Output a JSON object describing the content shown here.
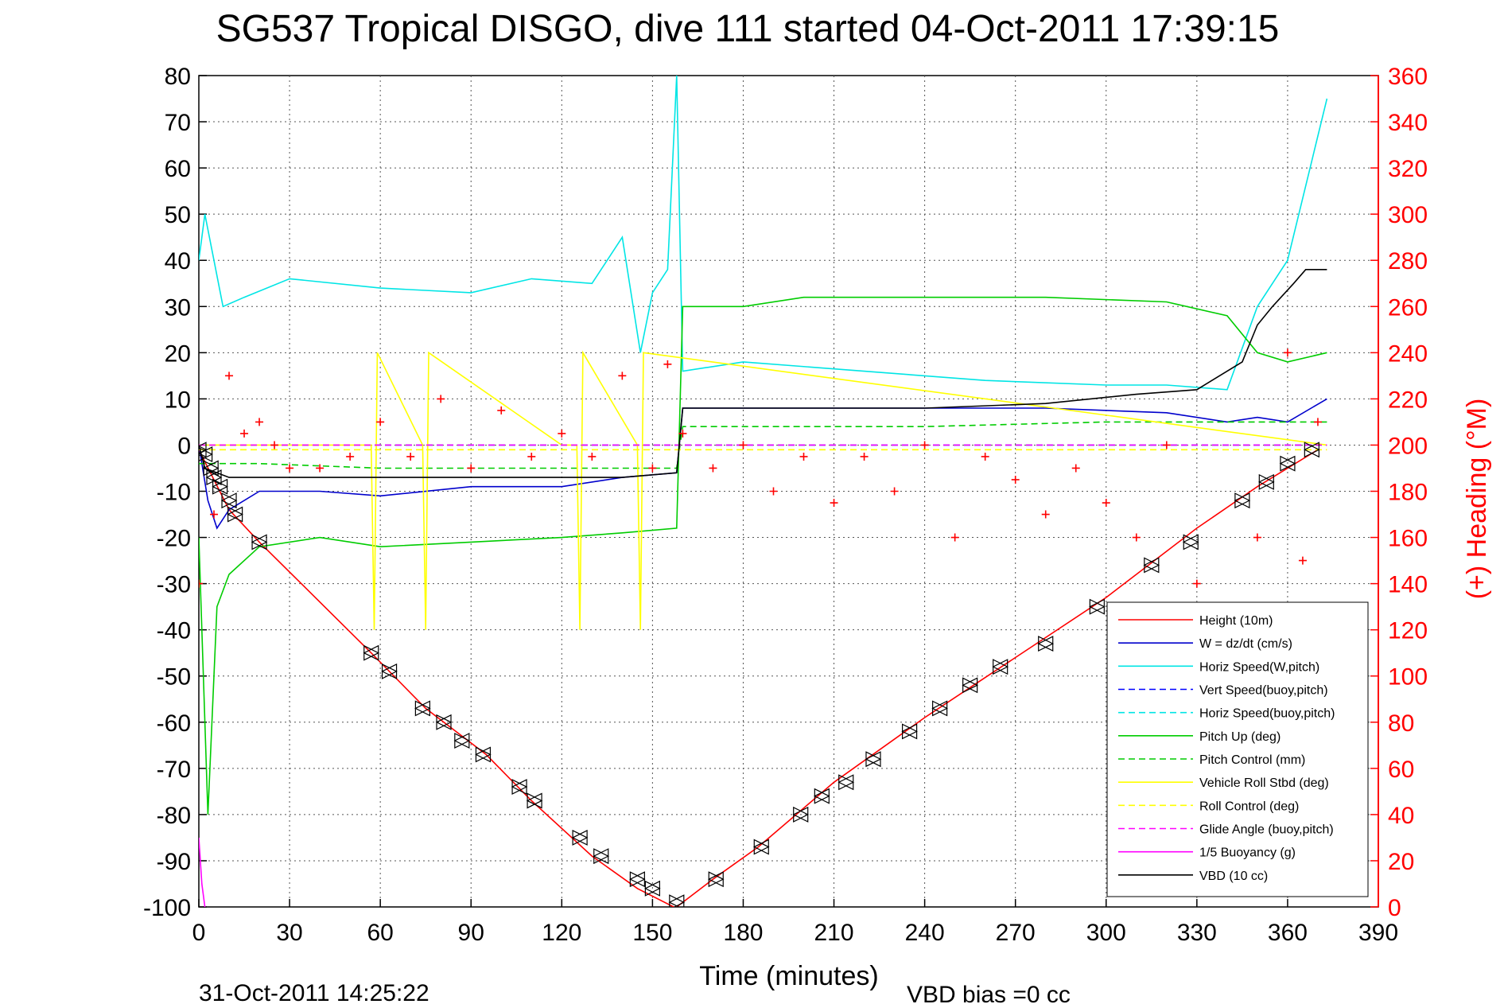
{
  "chart_data": {
    "type": "line",
    "title": "SG537 Tropical DISGO, dive 111 started 04-Oct-2011 17:39:15",
    "xlabel": "Time (minutes)",
    "ylabel_right": "(+) Heading (°M)",
    "footer_date": "31-Oct-2011 14:25:22",
    "footer_bias": "VBD bias =0 cc",
    "xlim": [
      0,
      390
    ],
    "ylim": [
      -100,
      80
    ],
    "ylim_right": [
      0,
      360
    ],
    "grid": true,
    "legend_position": "bottom-right",
    "x_ticks": [
      "0",
      "30",
      "60",
      "90",
      "120",
      "150",
      "180",
      "210",
      "240",
      "270",
      "300",
      "330",
      "360",
      "390"
    ],
    "y_ticks": [
      "80",
      "70",
      "60",
      "50",
      "40",
      "30",
      "20",
      "10",
      "0",
      "-10",
      "-20",
      "-30",
      "-40",
      "-50",
      "-60",
      "-70",
      "-80",
      "-90",
      "-100"
    ],
    "y_ticks_right": [
      "360",
      "340",
      "320",
      "300",
      "280",
      "260",
      "240",
      "220",
      "200",
      "180",
      "160",
      "140",
      "120",
      "100",
      "80",
      "60",
      "40",
      "20",
      "0"
    ],
    "series": [
      {
        "name": "Height (10m)",
        "color": "#ff0000",
        "style": "solid",
        "x": [
          0,
          10,
          20,
          57,
          75,
          95,
          110,
          130,
          145,
          157,
          158,
          170,
          185,
          210,
          240,
          270,
          300,
          330,
          350,
          370
        ],
        "y": [
          -1,
          -14,
          -21,
          -45,
          -57,
          -67,
          -77,
          -89,
          -96,
          -100,
          -100,
          -94,
          -87,
          -73,
          -59,
          -46,
          -33,
          -18,
          -9,
          -1
        ]
      },
      {
        "name": "W = dz/dt (cm/s)",
        "color": "#0000cc",
        "style": "solid",
        "x": [
          0,
          3,
          6,
          10,
          20,
          40,
          60,
          90,
          120,
          140,
          158,
          160,
          200,
          240,
          280,
          320,
          340,
          350,
          360,
          373
        ],
        "y": [
          0,
          -12,
          -18,
          -14,
          -10,
          -10,
          -11,
          -9,
          -9,
          -7,
          -6,
          8,
          8,
          8,
          8,
          7,
          5,
          6,
          5,
          10
        ]
      },
      {
        "name": "Horiz Speed(W,pitch)",
        "color": "#00e5e5",
        "style": "solid",
        "x": [
          0,
          2,
          5,
          8,
          15,
          30,
          60,
          90,
          110,
          130,
          140,
          146,
          150,
          155,
          158,
          160,
          180,
          220,
          260,
          300,
          320,
          340,
          350,
          360,
          373
        ],
        "y": [
          40,
          50,
          40,
          30,
          32,
          36,
          34,
          33,
          36,
          35,
          45,
          20,
          33,
          38,
          80,
          16,
          18,
          16,
          14,
          13,
          13,
          12,
          30,
          40,
          75
        ]
      },
      {
        "name": "Vert Speed(buoy,pitch)",
        "color": "#0000ff",
        "style": "dash",
        "x": [
          0,
          373
        ],
        "y": [
          0,
          0
        ]
      },
      {
        "name": "Horiz Speed(buoy,pitch)",
        "color": "#00e5e5",
        "style": "dash",
        "x": [
          0,
          373
        ],
        "y": [
          0,
          0
        ]
      },
      {
        "name": "Pitch Up (deg)",
        "color": "#00cc00",
        "style": "solid",
        "x": [
          0,
          3,
          6,
          10,
          20,
          40,
          60,
          90,
          120,
          140,
          158,
          160,
          180,
          200,
          240,
          280,
          320,
          340,
          350,
          360,
          373
        ],
        "y": [
          -20,
          -80,
          -35,
          -28,
          -22,
          -20,
          -22,
          -21,
          -20,
          -19,
          -18,
          30,
          30,
          32,
          32,
          32,
          31,
          28,
          20,
          18,
          20
        ]
      },
      {
        "name": "Pitch Control (mm)",
        "color": "#00cc00",
        "style": "dash",
        "x": [
          0,
          20,
          60,
          120,
          158,
          160,
          240,
          300,
          340,
          373
        ],
        "y": [
          -4,
          -4,
          -5,
          -5,
          -5,
          4,
          4,
          5,
          5,
          5
        ]
      },
      {
        "name": "Vehicle Roll Stbd (deg)",
        "color": "#ffff00",
        "style": "solid",
        "x": [
          0,
          40,
          57,
          58,
          59,
          74,
          75,
          76,
          120,
          125,
          126,
          127,
          145,
          146,
          147,
          373
        ],
        "y": [
          0,
          0,
          0,
          -40,
          20,
          0,
          -40,
          20,
          0,
          0,
          -40,
          20,
          0,
          -40,
          20,
          0
        ]
      },
      {
        "name": "Roll Control (deg)",
        "color": "#ffff00",
        "style": "dash",
        "x": [
          0,
          373
        ],
        "y": [
          -1,
          -1
        ]
      },
      {
        "name": "Glide Angle (buoy,pitch)",
        "color": "#ff00ff",
        "style": "dash",
        "x": [
          0,
          373
        ],
        "y": [
          0,
          0
        ]
      },
      {
        "name": "1/5 Buoyancy (g)",
        "color": "#ff00ff",
        "style": "solid",
        "x": [
          0,
          1,
          2
        ],
        "y": [
          -85,
          -95,
          -100
        ]
      },
      {
        "name": "VBD (10 cc)",
        "color": "#000000",
        "style": "solid",
        "x": [
          0,
          2,
          10,
          30,
          60,
          100,
          140,
          158,
          160,
          200,
          240,
          280,
          310,
          330,
          345,
          350,
          355,
          362,
          366,
          373
        ],
        "y": [
          0,
          -5,
          -7,
          -7,
          -7,
          -7,
          -7,
          -6,
          8,
          8,
          8,
          9,
          11,
          12,
          18,
          26,
          30,
          35,
          38,
          38
        ]
      }
    ],
    "heading": {
      "name": "(+) Heading (°M)",
      "color": "#ff0000",
      "x": [
        0,
        5,
        10,
        15,
        20,
        25,
        30,
        40,
        50,
        60,
        70,
        80,
        90,
        100,
        110,
        120,
        130,
        140,
        150,
        155,
        160,
        170,
        180,
        190,
        200,
        210,
        220,
        230,
        240,
        250,
        260,
        270,
        280,
        290,
        300,
        310,
        320,
        330,
        340,
        350,
        360,
        365,
        370
      ],
      "y": [
        140,
        170,
        230,
        205,
        210,
        200,
        190,
        190,
        195,
        210,
        195,
        220,
        190,
        215,
        195,
        205,
        195,
        230,
        190,
        235,
        205,
        190,
        200,
        180,
        195,
        175,
        195,
        180,
        200,
        160,
        195,
        185,
        170,
        190,
        175,
        160,
        200,
        140,
        120,
        160,
        240,
        150,
        210
      ]
    },
    "markers": {
      "x": [
        0,
        2,
        4,
        5,
        7,
        10,
        12,
        20,
        57,
        63,
        74,
        81,
        87,
        94,
        106,
        111,
        126,
        133,
        145,
        150,
        158,
        171,
        186,
        199,
        206,
        214,
        223,
        235,
        245,
        255,
        265,
        280,
        297,
        315,
        328,
        345,
        353,
        360,
        368
      ],
      "y": [
        -1,
        -2,
        -5,
        -7,
        -9,
        -12,
        -15,
        -21,
        -45,
        -49,
        -57,
        -60,
        -64,
        -67,
        -74,
        -77,
        -85,
        -89,
        -94,
        -96,
        -99,
        -94,
        -87,
        -80,
        -76,
        -73,
        -68,
        -62,
        -57,
        -52,
        -48,
        -43,
        -35,
        -26,
        -21,
        -12,
        -8,
        -4,
        -1
      ]
    }
  }
}
